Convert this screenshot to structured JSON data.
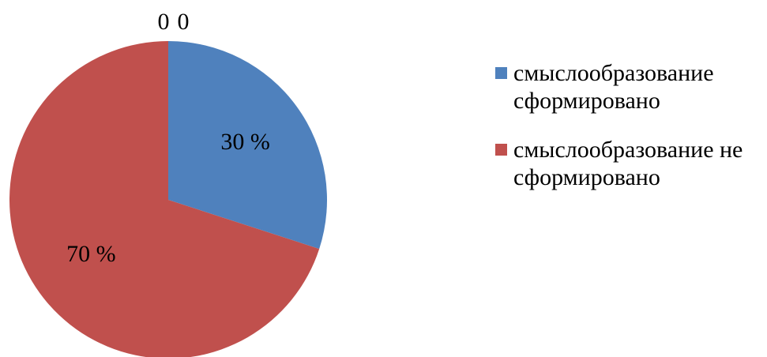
{
  "chart_data": {
    "type": "pie",
    "categories": [
      "смыслообразование сформировано",
      "смыслообразование не сформировано",
      null,
      null
    ],
    "values": [
      30,
      70,
      0,
      0
    ],
    "value_labels": [
      "30 %",
      "70 %",
      "0",
      "0"
    ],
    "colors": [
      "#4f81bd",
      "#c0504d",
      "#9bbb59",
      "#8064a2"
    ],
    "legend": "right"
  }
}
